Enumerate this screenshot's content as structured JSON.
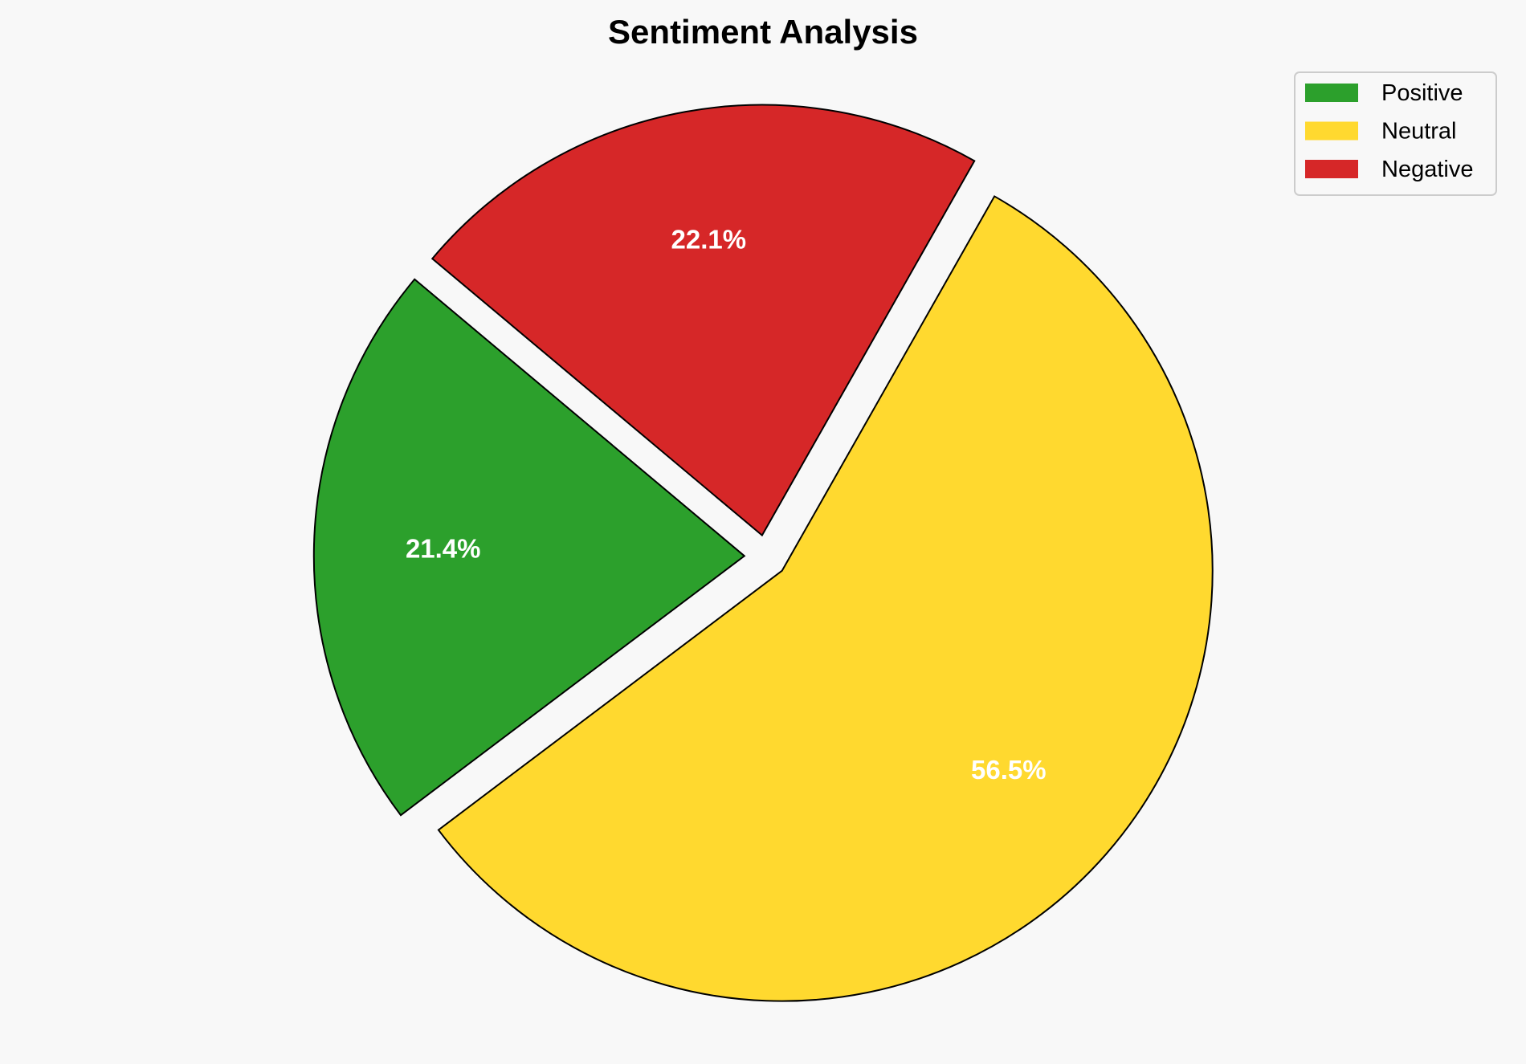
{
  "chart_data": {
    "type": "pie",
    "title": "Sentiment Analysis",
    "categories": [
      "Positive",
      "Neutral",
      "Negative"
    ],
    "values": [
      21.4,
      56.5,
      22.1
    ],
    "labels": [
      "21.4%",
      "56.5%",
      "22.1%"
    ],
    "colors": [
      "#2ca02c",
      "#ffd92f",
      "#d62728"
    ],
    "start_angle_deg": 140,
    "explode": [
      0.05,
      0.05,
      0.05
    ],
    "legend_position": "top-right"
  }
}
